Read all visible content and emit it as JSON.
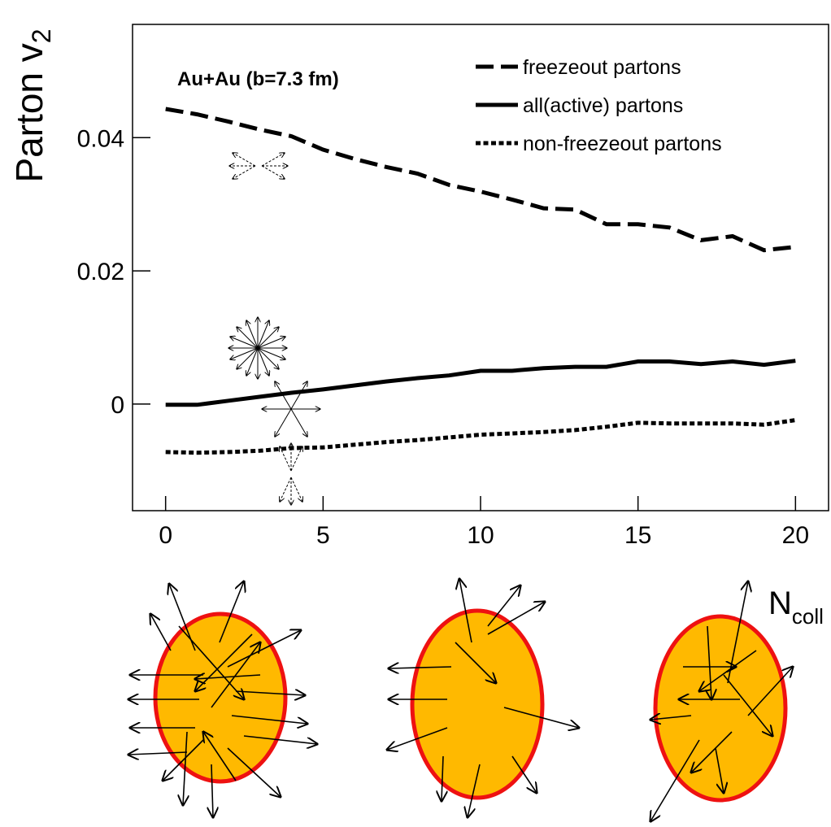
{
  "chart_data": {
    "type": "line",
    "ylabel": {
      "main": "Parton v",
      "sub": "2"
    },
    "xlabel": {
      "main": "N",
      "sub": "coll"
    },
    "annotation": "Au+Au (b=7.3 fm)",
    "x": [
      0,
      1,
      2,
      3,
      4,
      5,
      6,
      7,
      8,
      9,
      10,
      11,
      12,
      13,
      14,
      15,
      16,
      17,
      18,
      19,
      20
    ],
    "series": [
      {
        "name": "freezeout partons",
        "color": "#000000",
        "style": "dashed",
        "values": [
          0.0443,
          0.0435,
          0.0424,
          0.0412,
          0.0402,
          0.0382,
          0.0368,
          0.0356,
          0.0346,
          0.0329,
          0.0319,
          0.0307,
          0.0294,
          0.0292,
          0.027,
          0.027,
          0.0265,
          0.0246,
          0.0252,
          0.0231,
          0.0236
        ]
      },
      {
        "name": "all(active) partons",
        "color": "#000000",
        "style": "solid",
        "values": [
          -0.0001,
          -0.0001,
          0.0005,
          0.0011,
          0.0017,
          0.0022,
          0.0028,
          0.0034,
          0.0039,
          0.0043,
          0.005,
          0.005,
          0.0054,
          0.0056,
          0.0056,
          0.0064,
          0.0064,
          0.006,
          0.0064,
          0.0059,
          0.0065
        ]
      },
      {
        "name": "non-freezeout partons",
        "color": "#000000",
        "style": "dotted",
        "values": [
          -0.0072,
          -0.0073,
          -0.0072,
          -0.007,
          -0.0066,
          -0.0065,
          -0.0061,
          -0.0057,
          -0.0054,
          -0.005,
          -0.0046,
          -0.0044,
          -0.0042,
          -0.0039,
          -0.0034,
          -0.0028,
          -0.0029,
          -0.0029,
          -0.0029,
          -0.0031,
          -0.0024
        ]
      }
    ],
    "xlim": [
      -1.05,
      21.05
    ],
    "xticks": [
      0,
      5,
      10,
      15,
      20
    ],
    "ylim": [
      -0.016,
      0.057
    ],
    "yticks": [
      0,
      0.02,
      0.04
    ],
    "legend": "top-right",
    "grid": false
  }
}
